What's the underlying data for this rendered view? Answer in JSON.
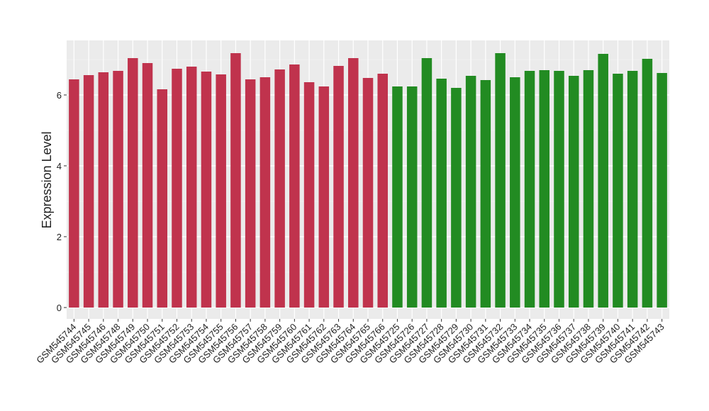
{
  "chart_data": {
    "type": "bar",
    "y_label": "Expression Level",
    "categories": [
      "GSM545744",
      "GSM545745",
      "GSM545746",
      "GSM545748",
      "GSM545749",
      "GSM545750",
      "GSM545751",
      "GSM545752",
      "GSM545753",
      "GSM545754",
      "GSM545755",
      "GSM545756",
      "GSM545757",
      "GSM545758",
      "GSM545759",
      "GSM545760",
      "GSM545761",
      "GSM545762",
      "GSM545763",
      "GSM545764",
      "GSM545765",
      "GSM545766",
      "GSM545725",
      "GSM545726",
      "GSM545727",
      "GSM545728",
      "GSM545729",
      "GSM545730",
      "GSM545731",
      "GSM545732",
      "GSM545733",
      "GSM545734",
      "GSM545735",
      "GSM545736",
      "GSM545737",
      "GSM545738",
      "GSM545739",
      "GSM545740",
      "GSM545741",
      "GSM545742",
      "GSM545743"
    ],
    "values": [
      6.44,
      6.56,
      6.64,
      6.68,
      7.04,
      6.9,
      6.16,
      6.74,
      6.8,
      6.66,
      6.58,
      7.18,
      6.44,
      6.5,
      6.72,
      6.86,
      6.36,
      6.24,
      6.82,
      7.04,
      6.48,
      6.6,
      6.24,
      6.24,
      7.04,
      6.46,
      6.2,
      6.54,
      6.42,
      7.18,
      6.5,
      6.68,
      6.7,
      6.68,
      6.54,
      6.7,
      7.16,
      6.6,
      6.68,
      7.02,
      6.62
    ],
    "colors": [
      "#c0334d",
      "#c0334d",
      "#c0334d",
      "#c0334d",
      "#c0334d",
      "#c0334d",
      "#c0334d",
      "#c0334d",
      "#c0334d",
      "#c0334d",
      "#c0334d",
      "#c0334d",
      "#c0334d",
      "#c0334d",
      "#c0334d",
      "#c0334d",
      "#c0334d",
      "#c0334d",
      "#c0334d",
      "#c0334d",
      "#c0334d",
      "#c0334d",
      "#228b22",
      "#228b22",
      "#228b22",
      "#228b22",
      "#228b22",
      "#228b22",
      "#228b22",
      "#228b22",
      "#228b22",
      "#228b22",
      "#228b22",
      "#228b22",
      "#228b22",
      "#228b22",
      "#228b22",
      "#228b22",
      "#228b22",
      "#228b22",
      "#228b22"
    ],
    "ylim": [
      -0.32,
      7.54
    ],
    "yticks": [
      0,
      2,
      4,
      6
    ],
    "minor_yticks": [
      1,
      3,
      5,
      7
    ],
    "grid": true
  }
}
